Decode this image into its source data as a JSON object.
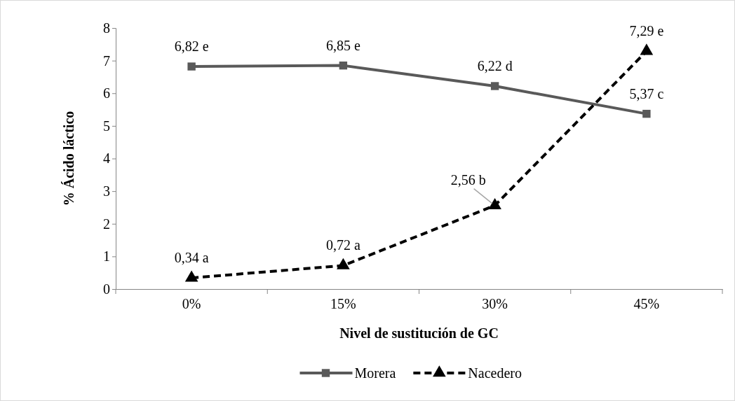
{
  "chart_data": {
    "type": "line",
    "xlabel": "Nivel de sustitución de GC",
    "ylabel": "% Ácido láctico",
    "categories": [
      "0%",
      "15%",
      "30%",
      "45%"
    ],
    "series": [
      {
        "name": "Morera",
        "color": "#595959",
        "values": [
          6.82,
          6.85,
          6.22,
          5.37
        ],
        "marker": "square",
        "line_style": "solid",
        "value_labels": [
          "6,82 e",
          "6,85 e",
          "6,22 d",
          "5,37 c"
        ]
      },
      {
        "name": "Nacedero",
        "color": "#000000",
        "values": [
          0.34,
          0.72,
          2.56,
          7.29
        ],
        "marker": "triangle",
        "line_style": "dashed",
        "value_labels": [
          "0,34 a",
          "0,72 a",
          "2,56 b",
          "7,29 e"
        ]
      }
    ],
    "ylim": [
      0,
      8
    ],
    "yticks": [
      0,
      1,
      2,
      3,
      4,
      5,
      6,
      7,
      8
    ],
    "grid": false,
    "legend": "bottom"
  }
}
